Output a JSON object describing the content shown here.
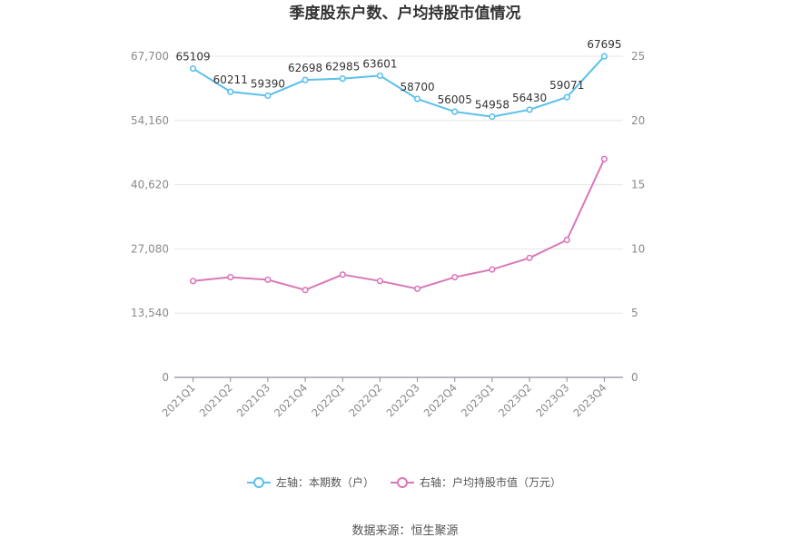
{
  "chart_data": {
    "type": "line",
    "title": "季度股东户数、户均持股市值情况",
    "categories": [
      "2021Q1",
      "2021Q2",
      "2021Q3",
      "2021Q4",
      "2022Q1",
      "2022Q2",
      "2022Q3",
      "2022Q4",
      "2023Q1",
      "2023Q2",
      "2023Q3",
      "2023Q4"
    ],
    "left_axis": {
      "ylim": [
        0,
        67700
      ],
      "ticks": [
        0,
        13540,
        27080,
        40620,
        54160,
        67700
      ],
      "tick_labels": [
        "0",
        "13,540",
        "27,080",
        "40,620",
        "54,160",
        "67,700"
      ]
    },
    "right_axis": {
      "ylim": [
        0,
        25
      ],
      "ticks": [
        0,
        5,
        10,
        15,
        20,
        25
      ],
      "tick_labels": [
        "0",
        "5",
        "10",
        "15",
        "20",
        "25"
      ]
    },
    "series": [
      {
        "name": "左轴：本期数（户）",
        "axis": "left",
        "color": "#5bc0eb",
        "values": [
          65109,
          60211,
          59390,
          62698,
          62985,
          63601,
          58700,
          56005,
          54958,
          56430,
          59071,
          67695
        ],
        "labels": [
          "65109",
          "60211",
          "59390",
          "62698",
          "62985",
          "63601",
          "58700",
          "56005",
          "54958",
          "56430",
          "59071",
          "67695"
        ]
      },
      {
        "name": "右轴：户均持股市值（万元）",
        "axis": "right",
        "color": "#d978b8",
        "values": [
          7.5,
          7.8,
          7.6,
          6.8,
          8.0,
          7.5,
          6.9,
          7.8,
          8.4,
          9.3,
          10.7,
          17.0
        ]
      }
    ],
    "grid": true,
    "legend": "bottom-center"
  },
  "source": "数据来源：恒生聚源"
}
